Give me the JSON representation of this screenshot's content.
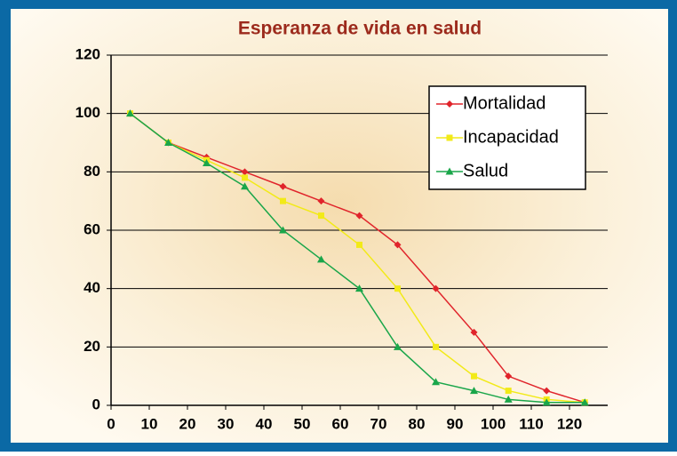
{
  "chart_data": {
    "type": "line",
    "title": "Esperanza de vida en salud",
    "x": [
      5,
      15,
      25,
      35,
      45,
      55,
      65,
      75,
      85,
      95,
      104,
      114,
      124
    ],
    "series": [
      {
        "name": "Mortalidad",
        "color": "#e0242b",
        "marker": "diamond",
        "values": [
          100,
          90,
          85,
          80,
          75,
          70,
          65,
          55,
          40,
          25,
          10,
          5,
          1
        ]
      },
      {
        "name": "Incapacidad",
        "color": "#f2ea18",
        "marker": "square",
        "values": [
          100,
          90,
          84,
          78,
          70,
          65,
          55,
          40,
          20,
          10,
          5,
          2,
          1
        ]
      },
      {
        "name": "Salud",
        "color": "#1aa64a",
        "marker": "triangle",
        "values": [
          100,
          90,
          83,
          75,
          60,
          50,
          40,
          20,
          8,
          5,
          2,
          1,
          1
        ]
      }
    ],
    "xlim": [
      0,
      130
    ],
    "xticks": [
      0,
      10,
      20,
      30,
      40,
      50,
      60,
      70,
      80,
      90,
      100,
      110,
      120
    ],
    "ylim": [
      0,
      120
    ],
    "yticks": [
      0,
      20,
      40,
      60,
      80,
      100,
      120
    ],
    "grid": true,
    "legend": "upper right"
  }
}
